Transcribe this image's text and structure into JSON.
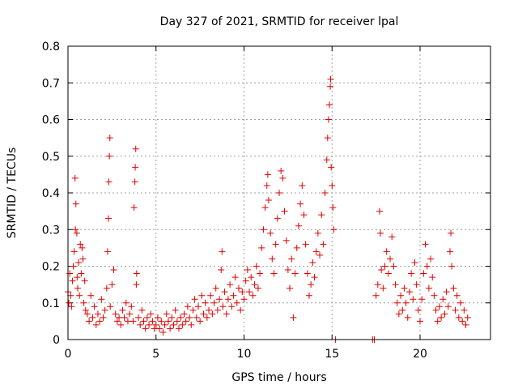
{
  "chart_data": {
    "type": "scatter",
    "title": "Day 327 of 2021, SRMTID for receiver lpal",
    "xlabel": "GPS time / hours",
    "ylabel": "SRMTID / TECUs",
    "xlim": [
      0,
      24
    ],
    "ylim": [
      0,
      0.8
    ],
    "xticks": [
      0,
      5,
      10,
      15,
      20
    ],
    "xtick_labels": [
      "0",
      "5",
      "10",
      "15",
      "20"
    ],
    "yticks": [
      0,
      0.1,
      0.2,
      0.3,
      0.4,
      0.5,
      0.6,
      0.7,
      0.8
    ],
    "ytick_labels": [
      "0",
      "0.1",
      "0.2",
      "0.3",
      "0.4",
      "0.5",
      "0.6",
      "0.7",
      "0.8"
    ],
    "grid": true,
    "marker": "+",
    "marker_color": "#e00000",
    "series": [
      {
        "name": "SRMTID",
        "points": [
          [
            0.0,
            0.13
          ],
          [
            0.05,
            0.1
          ],
          [
            0.1,
            0.18
          ],
          [
            0.15,
            0.12
          ],
          [
            0.2,
            0.09
          ],
          [
            0.25,
            0.16
          ],
          [
            0.3,
            0.2
          ],
          [
            0.35,
            0.24
          ],
          [
            0.4,
            0.44
          ],
          [
            0.42,
            0.3
          ],
          [
            0.45,
            0.37
          ],
          [
            0.5,
            0.29
          ],
          [
            0.52,
            0.17
          ],
          [
            0.55,
            0.14
          ],
          [
            0.6,
            0.21
          ],
          [
            0.65,
            0.12
          ],
          [
            0.7,
            0.26
          ],
          [
            0.75,
            0.18
          ],
          [
            0.8,
            0.25
          ],
          [
            0.85,
            0.22
          ],
          [
            0.9,
            0.1
          ],
          [
            0.95,
            0.16
          ],
          [
            1.0,
            0.08
          ],
          [
            1.1,
            0.07
          ],
          [
            1.2,
            0.05
          ],
          [
            1.3,
            0.12
          ],
          [
            1.4,
            0.06
          ],
          [
            1.5,
            0.09
          ],
          [
            1.6,
            0.04
          ],
          [
            1.7,
            0.07
          ],
          [
            1.8,
            0.05
          ],
          [
            1.9,
            0.11
          ],
          [
            2.0,
            0.06
          ],
          [
            2.1,
            0.08
          ],
          [
            2.2,
            0.14
          ],
          [
            2.25,
            0.24
          ],
          [
            2.3,
            0.33
          ],
          [
            2.32,
            0.43
          ],
          [
            2.35,
            0.5
          ],
          [
            2.38,
            0.55
          ],
          [
            2.4,
            0.09
          ],
          [
            2.5,
            0.15
          ],
          [
            2.6,
            0.19
          ],
          [
            2.7,
            0.07
          ],
          [
            2.8,
            0.05
          ],
          [
            2.9,
            0.06
          ],
          [
            3.0,
            0.04
          ],
          [
            3.1,
            0.08
          ],
          [
            3.2,
            0.06
          ],
          [
            3.3,
            0.1
          ],
          [
            3.4,
            0.05
          ],
          [
            3.5,
            0.07
          ],
          [
            3.6,
            0.09
          ],
          [
            3.7,
            0.05
          ],
          [
            3.75,
            0.36
          ],
          [
            3.8,
            0.43
          ],
          [
            3.82,
            0.47
          ],
          [
            3.85,
            0.52
          ],
          [
            3.88,
            0.15
          ],
          [
            3.9,
            0.18
          ],
          [
            4.0,
            0.06
          ],
          [
            4.1,
            0.04
          ],
          [
            4.2,
            0.08
          ],
          [
            4.3,
            0.05
          ],
          [
            4.4,
            0.03
          ],
          [
            4.5,
            0.06
          ],
          [
            4.6,
            0.04
          ],
          [
            4.7,
            0.07
          ],
          [
            4.8,
            0.05
          ],
          [
            4.9,
            0.03
          ],
          [
            5.0,
            0.04
          ],
          [
            5.1,
            0.06
          ],
          [
            5.2,
            0.03
          ],
          [
            5.3,
            0.05
          ],
          [
            5.4,
            0.02
          ],
          [
            5.5,
            0.04
          ],
          [
            5.6,
            0.07
          ],
          [
            5.7,
            0.05
          ],
          [
            5.8,
            0.03
          ],
          [
            5.9,
            0.06
          ],
          [
            6.0,
            0.04
          ],
          [
            6.1,
            0.08
          ],
          [
            6.2,
            0.05
          ],
          [
            6.3,
            0.03
          ],
          [
            6.4,
            0.06
          ],
          [
            6.5,
            0.04
          ],
          [
            6.6,
            0.07
          ],
          [
            6.7,
            0.05
          ],
          [
            6.8,
            0.09
          ],
          [
            6.9,
            0.06
          ],
          [
            7.0,
            0.04
          ],
          [
            7.1,
            0.08
          ],
          [
            7.2,
            0.11
          ],
          [
            7.3,
            0.06
          ],
          [
            7.4,
            0.09
          ],
          [
            7.5,
            0.05
          ],
          [
            7.6,
            0.12
          ],
          [
            7.7,
            0.07
          ],
          [
            7.8,
            0.1
          ],
          [
            7.9,
            0.06
          ],
          [
            8.0,
            0.08
          ],
          [
            8.1,
            0.12
          ],
          [
            8.2,
            0.07
          ],
          [
            8.3,
            0.1
          ],
          [
            8.4,
            0.14
          ],
          [
            8.5,
            0.08
          ],
          [
            8.6,
            0.11
          ],
          [
            8.7,
            0.19
          ],
          [
            8.75,
            0.24
          ],
          [
            8.8,
            0.09
          ],
          [
            8.9,
            0.13
          ],
          [
            9.0,
            0.07
          ],
          [
            9.1,
            0.11
          ],
          [
            9.2,
            0.15
          ],
          [
            9.3,
            0.09
          ],
          [
            9.4,
            0.12
          ],
          [
            9.5,
            0.17
          ],
          [
            9.6,
            0.1
          ],
          [
            9.7,
            0.14
          ],
          [
            9.8,
            0.08
          ],
          [
            9.9,
            0.13
          ],
          [
            10.0,
            0.11
          ],
          [
            10.1,
            0.16
          ],
          [
            10.2,
            0.19
          ],
          [
            10.3,
            0.13
          ],
          [
            10.4,
            0.17
          ],
          [
            10.5,
            0.12
          ],
          [
            10.6,
            0.15
          ],
          [
            10.7,
            0.2
          ],
          [
            10.8,
            0.14
          ],
          [
            10.9,
            0.18
          ],
          [
            11.0,
            0.25
          ],
          [
            11.1,
            0.3
          ],
          [
            11.2,
            0.36
          ],
          [
            11.3,
            0.42
          ],
          [
            11.35,
            0.45
          ],
          [
            11.4,
            0.38
          ],
          [
            11.5,
            0.29
          ],
          [
            11.6,
            0.22
          ],
          [
            11.7,
            0.18
          ],
          [
            11.8,
            0.26
          ],
          [
            11.9,
            0.33
          ],
          [
            12.0,
            0.4
          ],
          [
            12.1,
            0.46
          ],
          [
            12.2,
            0.44
          ],
          [
            12.3,
            0.35
          ],
          [
            12.4,
            0.27
          ],
          [
            12.5,
            0.19
          ],
          [
            12.6,
            0.14
          ],
          [
            12.7,
            0.22
          ],
          [
            12.8,
            0.06
          ],
          [
            12.9,
            0.18
          ],
          [
            13.0,
            0.25
          ],
          [
            13.1,
            0.31
          ],
          [
            13.2,
            0.37
          ],
          [
            13.3,
            0.42
          ],
          [
            13.4,
            0.34
          ],
          [
            13.5,
            0.26
          ],
          [
            13.6,
            0.18
          ],
          [
            13.7,
            0.12
          ],
          [
            13.8,
            0.15
          ],
          [
            13.9,
            0.21
          ],
          [
            14.0,
            0.17
          ],
          [
            14.1,
            0.24
          ],
          [
            14.2,
            0.29
          ],
          [
            14.3,
            0.23
          ],
          [
            14.4,
            0.34
          ],
          [
            14.5,
            0.26
          ],
          [
            14.6,
            0.4
          ],
          [
            14.7,
            0.49
          ],
          [
            14.75,
            0.55
          ],
          [
            14.8,
            0.6
          ],
          [
            14.85,
            0.64
          ],
          [
            14.9,
            0.69
          ],
          [
            14.92,
            0.71
          ],
          [
            14.95,
            0.47
          ],
          [
            15.0,
            0.42
          ],
          [
            15.05,
            0.36
          ],
          [
            15.1,
            0.3
          ],
          [
            15.2,
            0.0
          ],
          [
            17.3,
            0.0
          ],
          [
            17.4,
            0.0
          ],
          [
            17.5,
            0.12
          ],
          [
            17.6,
            0.15
          ],
          [
            17.7,
            0.35
          ],
          [
            17.75,
            0.29
          ],
          [
            17.8,
            0.19
          ],
          [
            17.9,
            0.14
          ],
          [
            18.0,
            0.2
          ],
          [
            18.1,
            0.24
          ],
          [
            18.2,
            0.18
          ],
          [
            18.3,
            0.22
          ],
          [
            18.4,
            0.28
          ],
          [
            18.5,
            0.2
          ],
          [
            18.6,
            0.15
          ],
          [
            18.7,
            0.1
          ],
          [
            18.8,
            0.07
          ],
          [
            18.9,
            0.12
          ],
          [
            19.0,
            0.08
          ],
          [
            19.1,
            0.14
          ],
          [
            19.2,
            0.1
          ],
          [
            19.3,
            0.06
          ],
          [
            19.4,
            0.13
          ],
          [
            19.5,
            0.18
          ],
          [
            19.6,
            0.11
          ],
          [
            19.7,
            0.21
          ],
          [
            19.8,
            0.15
          ],
          [
            19.9,
            0.08
          ],
          [
            20.0,
            0.05
          ],
          [
            20.1,
            0.11
          ],
          [
            20.2,
            0.18
          ],
          [
            20.3,
            0.26
          ],
          [
            20.4,
            0.2
          ],
          [
            20.5,
            0.14
          ],
          [
            20.6,
            0.22
          ],
          [
            20.7,
            0.17
          ],
          [
            20.8,
            0.12
          ],
          [
            20.9,
            0.08
          ],
          [
            21.0,
            0.05
          ],
          [
            21.1,
            0.09
          ],
          [
            21.2,
            0.06
          ],
          [
            21.3,
            0.11
          ],
          [
            21.4,
            0.07
          ],
          [
            21.5,
            0.13
          ],
          [
            21.6,
            0.09
          ],
          [
            21.7,
            0.24
          ],
          [
            21.75,
            0.29
          ],
          [
            21.8,
            0.2
          ],
          [
            21.9,
            0.14
          ],
          [
            22.0,
            0.08
          ],
          [
            22.1,
            0.12
          ],
          [
            22.2,
            0.06
          ],
          [
            22.3,
            0.1
          ],
          [
            22.4,
            0.05
          ],
          [
            22.5,
            0.08
          ],
          [
            22.6,
            0.04
          ],
          [
            22.7,
            0.06
          ]
        ]
      }
    ]
  }
}
